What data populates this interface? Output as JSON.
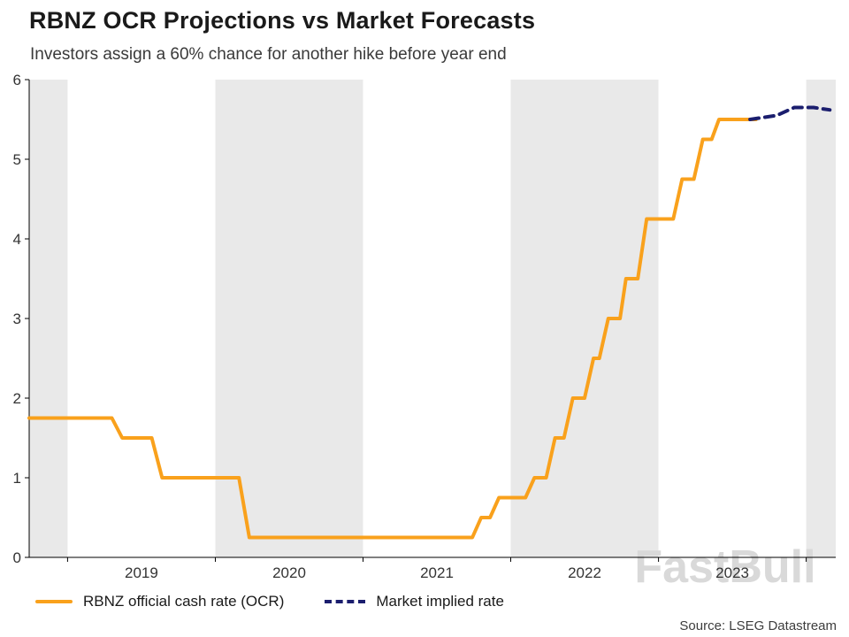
{
  "source": "Source: LSEG Datastream",
  "chart_data": {
    "type": "line",
    "title": "RBNZ OCR Projections vs Market Forecasts",
    "subtitle": "Investors assign a 60% chance for another hike before year end",
    "watermark": "FastBull",
    "x_range": [
      2018.74,
      2024.2
    ],
    "y_range": [
      0,
      6
    ],
    "grid": false,
    "legend_position": "bottom",
    "y_ticks": [
      0,
      1,
      2,
      3,
      4,
      5,
      6
    ],
    "x_ticks": [
      {
        "position": 2019.5,
        "label": "2019"
      },
      {
        "position": 2020.5,
        "label": "2020"
      },
      {
        "position": 2021.5,
        "label": "2021"
      },
      {
        "position": 2022.5,
        "label": "2022"
      },
      {
        "position": 2023.5,
        "label": "2023"
      }
    ],
    "x_minor_ticks": [
      2019,
      2020,
      2021,
      2022,
      2023,
      2024
    ],
    "shaded_bands": [
      [
        2018.74,
        2019
      ],
      [
        2020,
        2021
      ],
      [
        2022,
        2023
      ],
      [
        2024,
        2024.2
      ]
    ],
    "colors": {
      "ocr_line": "#F9A11C",
      "market_line": "#1B1E6E",
      "band": "#E9E9E9",
      "axis": "#000000",
      "tick_label": "#333333",
      "watermark": "#D9D9D9"
    },
    "series": [
      {
        "name": "RBNZ official cash rate (OCR)",
        "style": "solid",
        "color": "#F9A11C",
        "points": [
          [
            2018.74,
            1.75
          ],
          [
            2019.3,
            1.75
          ],
          [
            2019.37,
            1.5
          ],
          [
            2019.57,
            1.5
          ],
          [
            2019.64,
            1.0
          ],
          [
            2020.16,
            1.0
          ],
          [
            2020.23,
            0.25
          ],
          [
            2021.74,
            0.25
          ],
          [
            2021.8,
            0.5
          ],
          [
            2021.86,
            0.5
          ],
          [
            2021.92,
            0.75
          ],
          [
            2022.1,
            0.75
          ],
          [
            2022.16,
            1.0
          ],
          [
            2022.24,
            1.0
          ],
          [
            2022.3,
            1.5
          ],
          [
            2022.36,
            1.5
          ],
          [
            2022.42,
            2.0
          ],
          [
            2022.5,
            2.0
          ],
          [
            2022.56,
            2.5
          ],
          [
            2022.6,
            2.5
          ],
          [
            2022.66,
            3.0
          ],
          [
            2022.74,
            3.0
          ],
          [
            2022.78,
            3.5
          ],
          [
            2022.86,
            3.5
          ],
          [
            2022.92,
            4.25
          ],
          [
            2023.1,
            4.25
          ],
          [
            2023.16,
            4.75
          ],
          [
            2023.24,
            4.75
          ],
          [
            2023.3,
            5.25
          ],
          [
            2023.36,
            5.25
          ],
          [
            2023.41,
            5.5
          ],
          [
            2023.66,
            5.5
          ]
        ]
      },
      {
        "name": "Market implied rate",
        "style": "dashed",
        "color": "#1B1E6E",
        "points": [
          [
            2023.62,
            5.5
          ],
          [
            2023.8,
            5.55
          ],
          [
            2023.92,
            5.65
          ],
          [
            2024.05,
            5.65
          ],
          [
            2024.16,
            5.62
          ]
        ]
      }
    ]
  }
}
